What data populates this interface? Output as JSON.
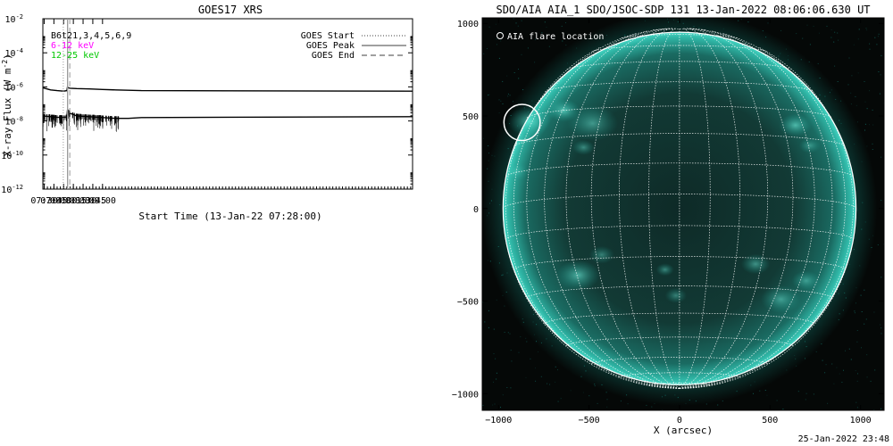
{
  "stamp": "25-Jan-2022 23:48",
  "chart_data": [
    {
      "type": "line",
      "title": "GOES17 XRS",
      "xlabel": "Start Time (13-Jan-22 07:28:00)",
      "ylabel": "X-ray Flux (W m",
      "ylabel_exp": "-2",
      "ylabel_close": ")",
      "yscale": "log",
      "ylim_exp": [
        -12,
        -2
      ],
      "ytick_exps": [
        -12,
        -10,
        -8,
        -6,
        -4,
        -2
      ],
      "xlim_min": [
        448,
        1018
      ],
      "xticks": [
        {
          "label": "07:30",
          "min": 450
        },
        {
          "label": "07:45",
          "min": 465
        },
        {
          "label": "08:00",
          "min": 480
        },
        {
          "label": "08:15",
          "min": 495
        },
        {
          "label": "08:30",
          "min": 510
        },
        {
          "label": "08:45",
          "min": 525
        },
        {
          "label": "09:00",
          "min": 540
        }
      ],
      "channel_lines": [
        {
          "text": "B6t21,3,4,5,6,9",
          "color": "#000000"
        },
        {
          "text": "6-12 keV",
          "color": "#ff00ff"
        },
        {
          "text": "12-25 keV",
          "color": "#00c800"
        }
      ],
      "markers_legend": [
        {
          "label": "GOES Start",
          "style": "dotted"
        },
        {
          "label": "GOES Peak",
          "style": "solid"
        },
        {
          "label": "GOES End",
          "style": "dashed"
        }
      ],
      "markers_min": {
        "start": 479.5,
        "peak": 486.1,
        "end": 489.5
      },
      "series": [
        {
          "band": "long",
          "x_min": [
            448,
            460,
            470,
            480,
            485,
            486,
            487,
            490,
            500,
            520,
            540,
            560,
            580,
            600,
            1018
          ],
          "flux_exp": [
            -6.05,
            -6.18,
            -6.22,
            -6.25,
            -6.22,
            -6.0,
            -6.05,
            -6.08,
            -6.1,
            -6.12,
            -6.15,
            -6.18,
            -6.2,
            -6.22,
            -6.25
          ]
        },
        {
          "band": "short",
          "x_min": [
            448,
            460,
            470,
            480,
            485,
            486,
            487,
            490,
            500,
            520,
            540,
            560,
            580,
            600,
            1018
          ],
          "flux_exp": [
            -7.7,
            -7.75,
            -7.78,
            -7.8,
            -7.75,
            -7.35,
            -7.45,
            -7.55,
            -7.7,
            -7.75,
            -7.8,
            -7.85,
            -7.85,
            -7.8,
            -7.75
          ]
        }
      ]
    },
    {
      "type": "image",
      "title": "SDO/AIA AIA_1 SDO/JSOC-SDP 131 13-Jan-2022 08:06:06.630 UT",
      "xlabel": "X (arcsec)",
      "ylabel": "",
      "xlim": [
        -1090,
        1130
      ],
      "ylim": [
        -1090,
        1030
      ],
      "xticks": [
        -1000,
        -500,
        0,
        500,
        1000
      ],
      "yticks": [
        -1000,
        -500,
        0,
        500,
        1000
      ],
      "legend": "AIA flare location",
      "solar_radius_arcsec": 975,
      "flare_location": {
        "x": -870,
        "y": 465,
        "r_arcsec": 100
      },
      "disk_color": "#1aa89a"
    }
  ]
}
